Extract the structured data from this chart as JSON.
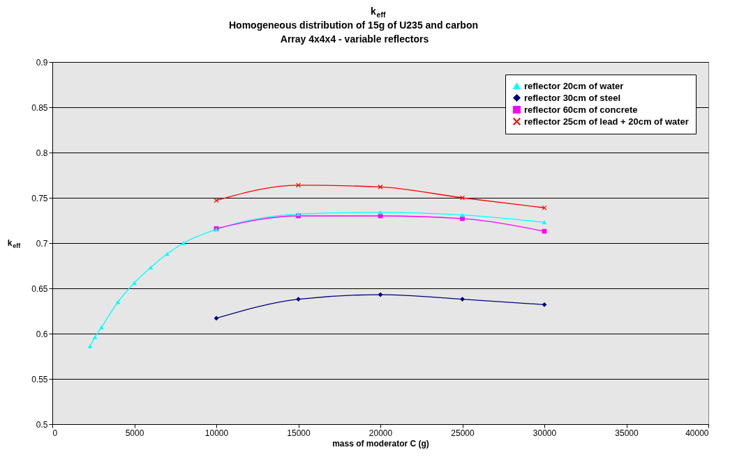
{
  "chart_data": {
    "type": "line",
    "title": [
      "k$_{eff}$",
      "Homogeneous distribution of 15g of U235 and carbon",
      "Array 4x4x4 - variable reflectors"
    ],
    "xlabel": "mass of moderator C (g)",
    "ylabel": "k$_{eff}$",
    "xlim": [
      0,
      40000
    ],
    "xticks": [
      0,
      5000,
      10000,
      15000,
      20000,
      25000,
      30000,
      35000,
      40000
    ],
    "ylim": [
      0.5,
      0.9
    ],
    "yticks": [
      0.5,
      0.55,
      0.6,
      0.65,
      0.7,
      0.75,
      0.8,
      0.85,
      0.9
    ],
    "grid": "y",
    "legend": "top right",
    "line_style": "solid",
    "series": [
      {
        "name": "reflector 20cm of water",
        "color": "#00ffff",
        "marker": "triangle",
        "x": [
          2300,
          2600,
          3000,
          4000,
          5000,
          6000,
          7000,
          8000,
          10000,
          15000,
          20000,
          25000,
          30000
        ],
        "values": [
          0.586,
          0.596,
          0.607,
          0.635,
          0.656,
          0.673,
          0.688,
          0.7,
          0.715,
          0.732,
          0.734,
          0.731,
          0.723
        ]
      },
      {
        "name": "reflector 30cm of steel",
        "color": "#000080",
        "marker": "diamond",
        "x": [
          10000,
          15000,
          20000,
          25000,
          30000
        ],
        "values": [
          0.617,
          0.638,
          0.643,
          0.638,
          0.632
        ]
      },
      {
        "name": "reflector 60cm of concrete",
        "color": "#ff00ff",
        "marker": "square",
        "x": [
          10000,
          15000,
          20000,
          25000,
          30000
        ],
        "values": [
          0.716,
          0.73,
          0.73,
          0.727,
          0.713
        ]
      },
      {
        "name": "reflector 25cm of lead + 20cm of water",
        "color": "#ff0000",
        "marker": "cross",
        "x": [
          10000,
          15000,
          20000,
          25000,
          30000
        ],
        "values": [
          0.747,
          0.764,
          0.762,
          0.75,
          0.739
        ]
      }
    ]
  }
}
